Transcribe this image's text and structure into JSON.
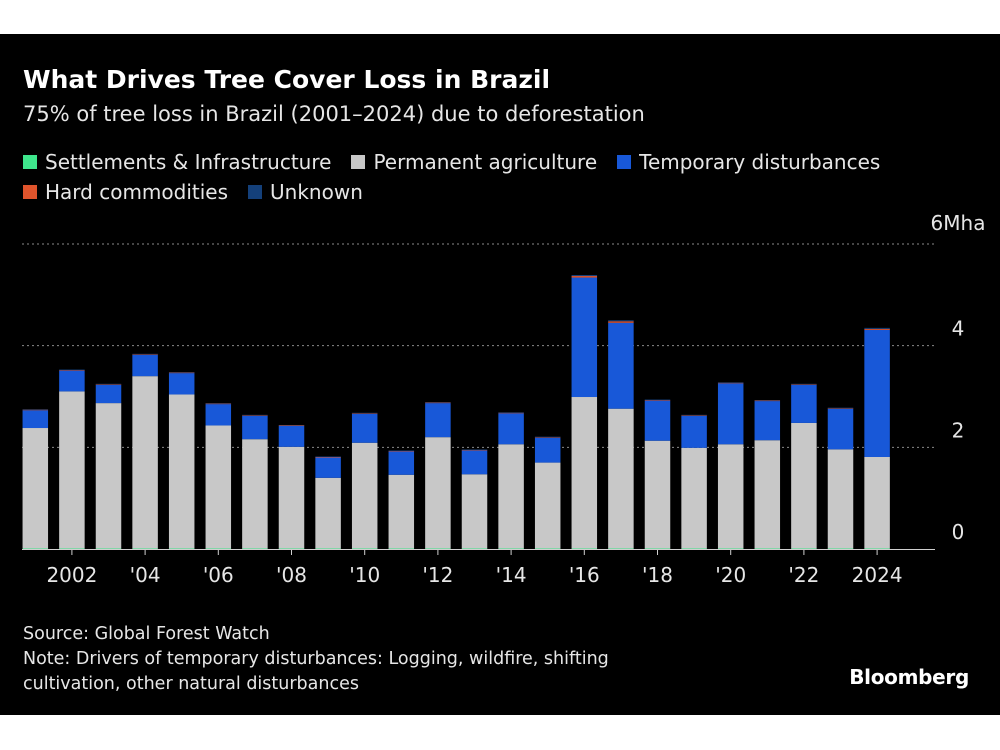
{
  "header": {
    "title": "What Drives Tree Cover Loss in Brazil",
    "subtitle": "75% of tree loss in Brazil (2001–2024) due to deforestation"
  },
  "legend": {
    "items": [
      {
        "label": "Settlements & Infrastructure",
        "color": "#3ee68c"
      },
      {
        "label": "Permanent agriculture",
        "color": "#c8c8c8"
      },
      {
        "label": "Temporary disturbances",
        "color": "#1858d8"
      },
      {
        "label": "Hard commodities",
        "color": "#e0542c"
      },
      {
        "label": "Unknown",
        "color": "#14407a"
      }
    ]
  },
  "footer": {
    "source": "Source: Global Forest Watch",
    "note_line1": "Note: Drivers of temporary disturbances: Logging, wildfire, shifting",
    "note_line2": "cultivation, other natural disturbances"
  },
  "brand": "Bloomberg",
  "chart_data": {
    "type": "bar",
    "stacked": true,
    "x": [
      2001,
      2002,
      2003,
      2004,
      2005,
      2006,
      2007,
      2008,
      2009,
      2010,
      2011,
      2012,
      2013,
      2014,
      2015,
      2016,
      2017,
      2018,
      2019,
      2020,
      2021,
      2022,
      2023,
      2024
    ],
    "x_tick_labels": [
      {
        "year": 2002,
        "label": "2002"
      },
      {
        "year": 2004,
        "label": "'04"
      },
      {
        "year": 2006,
        "label": "'06"
      },
      {
        "year": 2008,
        "label": "'08"
      },
      {
        "year": 2010,
        "label": "'10"
      },
      {
        "year": 2012,
        "label": "'12"
      },
      {
        "year": 2014,
        "label": "'14"
      },
      {
        "year": 2016,
        "label": "'16"
      },
      {
        "year": 2018,
        "label": "'18"
      },
      {
        "year": 2020,
        "label": "'20"
      },
      {
        "year": 2022,
        "label": "'22"
      },
      {
        "year": 2024,
        "label": "2024"
      }
    ],
    "y_ticks": [
      {
        "value": 0,
        "label": "0"
      },
      {
        "value": 2,
        "label": "2"
      },
      {
        "value": 4,
        "label": "4"
      },
      {
        "value": 6,
        "label": "6Mha"
      }
    ],
    "ylim": [
      0,
      6
    ],
    "grid": true,
    "series": [
      {
        "name": "Settlements & Infrastructure",
        "color": "#3ee68c",
        "values": [
          0.01,
          0.01,
          0.01,
          0.01,
          0.01,
          0.01,
          0.01,
          0.01,
          0.01,
          0.01,
          0.01,
          0.01,
          0.01,
          0.01,
          0.01,
          0.01,
          0.01,
          0.01,
          0.01,
          0.01,
          0.01,
          0.01,
          0.01,
          0.01
        ]
      },
      {
        "name": "Permanent agriculture",
        "color": "#c8c8c8",
        "values": [
          2.37,
          3.09,
          2.86,
          3.39,
          3.03,
          2.42,
          2.15,
          2.0,
          1.39,
          2.08,
          1.45,
          2.19,
          1.46,
          2.05,
          1.69,
          2.98,
          2.75,
          2.12,
          1.98,
          2.05,
          2.13,
          2.47,
          1.95,
          1.8
        ]
      },
      {
        "name": "Temporary disturbances",
        "color": "#1858d8",
        "values": [
          0.35,
          0.41,
          0.36,
          0.42,
          0.42,
          0.42,
          0.46,
          0.41,
          0.4,
          0.57,
          0.46,
          0.67,
          0.47,
          0.61,
          0.49,
          2.35,
          1.69,
          0.79,
          0.63,
          1.2,
          0.77,
          0.75,
          0.8,
          2.5
        ]
      },
      {
        "name": "Hard commodities",
        "color": "#e0542c",
        "values": [
          0.01,
          0.01,
          0.01,
          0.01,
          0.01,
          0.01,
          0.01,
          0.01,
          0.01,
          0.01,
          0.01,
          0.01,
          0.01,
          0.01,
          0.01,
          0.03,
          0.03,
          0.01,
          0.01,
          0.01,
          0.01,
          0.01,
          0.01,
          0.02
        ]
      },
      {
        "name": "Unknown",
        "color": "#14407a",
        "values": [
          0.01,
          0.01,
          0.01,
          0.01,
          0.01,
          0.01,
          0.01,
          0.01,
          0.01,
          0.01,
          0.01,
          0.01,
          0.01,
          0.01,
          0.01,
          0.02,
          0.02,
          0.01,
          0.01,
          0.01,
          0.01,
          0.01,
          0.01,
          0.02
        ]
      }
    ]
  }
}
